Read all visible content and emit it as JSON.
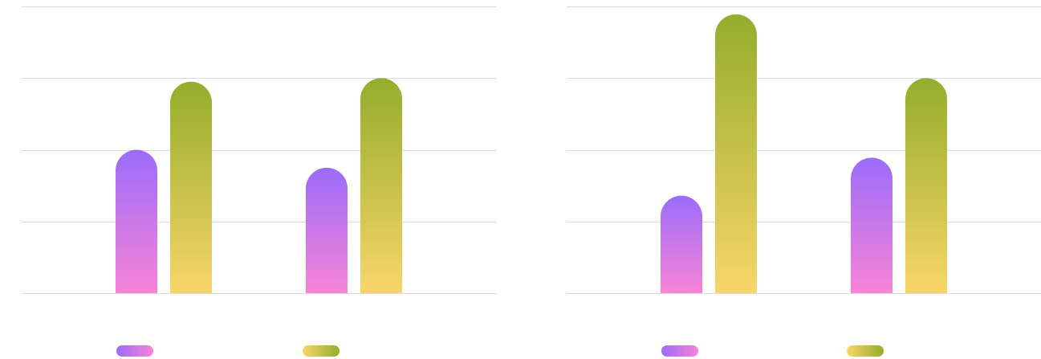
{
  "colors": {
    "gridline": "#dcdcdc",
    "series_a_top": "#9b6cfb",
    "series_a_bottom": "#f784d6",
    "series_b_top": "#94ad2c",
    "series_b_bottom": "#f8d56a"
  },
  "chart_data": [
    {
      "type": "bar",
      "title": "",
      "xlabel": "",
      "ylabel": "",
      "categories": [
        "",
        ""
      ],
      "series": [
        {
          "values": [
            2.0,
            1.75
          ],
          "gradient": [
            "#9b6cfb",
            "#f784d6"
          ]
        },
        {
          "values": [
            2.95,
            3.0
          ],
          "gradient": [
            "#94ad2c",
            "#f8d56a"
          ]
        }
      ],
      "ylim": [
        0,
        4
      ],
      "grid": true,
      "legend": "bottom"
    },
    {
      "type": "bar",
      "title": "",
      "xlabel": "",
      "ylabel": "",
      "categories": [
        "",
        ""
      ],
      "series": [
        {
          "values": [
            1.36,
            1.89
          ],
          "gradient": [
            "#9b6cfb",
            "#f784d6"
          ]
        },
        {
          "values": [
            3.89,
            3.0
          ],
          "gradient": [
            "#94ad2c",
            "#f8d56a"
          ]
        }
      ],
      "ylim": [
        0,
        4
      ],
      "grid": true,
      "legend": "bottom"
    }
  ]
}
